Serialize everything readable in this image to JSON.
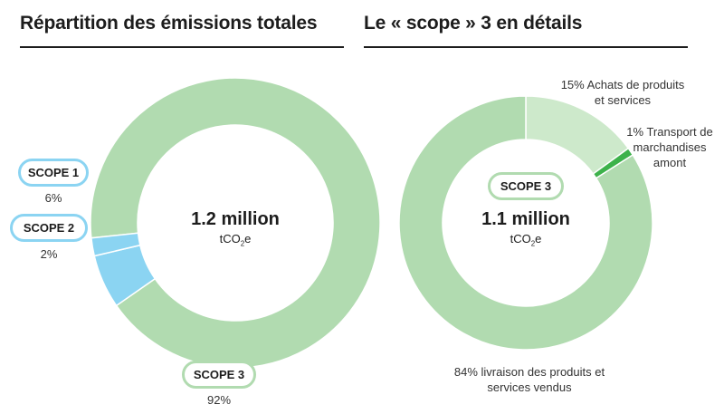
{
  "chart_data": [
    {
      "type": "pie",
      "title": "Répartition des émissions totales",
      "center_value": "1.2 million",
      "unit": {
        "prefix": "tCO",
        "sub": "2",
        "suffix": "e"
      },
      "categories": [
        "SCOPE 3",
        "SCOPE 1",
        "SCOPE 2"
      ],
      "values": [
        92,
        6,
        2
      ],
      "labels": [
        {
          "name": "SCOPE 1",
          "pct": "6%"
        },
        {
          "name": "SCOPE 2",
          "pct": "2%"
        },
        {
          "name": "SCOPE 3",
          "pct": "92%"
        }
      ],
      "colors": [
        "#b1dbb0",
        "#8bd4f2",
        "#8bd4f2"
      ]
    },
    {
      "type": "pie",
      "title": "Le « scope » 3 en détails",
      "center_label": "SCOPE 3",
      "center_value": "1.1 million",
      "unit": {
        "prefix": "tCO",
        "sub": "2",
        "suffix": "e"
      },
      "categories": [
        "Achats de produits et services",
        "Transport de marchandises amont",
        "livraison des produits et services vendus"
      ],
      "values": [
        15,
        1,
        84
      ],
      "annotations": {
        "achats": [
          "15% Achats de produits",
          "et services"
        ],
        "transport": [
          "1% Transport de",
          "marchandises",
          "amont"
        ],
        "livraison": [
          "84% livraison des produits et",
          "services vendus"
        ]
      },
      "colors": [
        "#cde9cb",
        "#3db24b",
        "#b1dbb0"
      ]
    }
  ],
  "colors": {
    "scope1_2_ring": "#8bd4f2",
    "scope3_ring": "#b1dbb0",
    "rule": "#1d1d1d"
  }
}
